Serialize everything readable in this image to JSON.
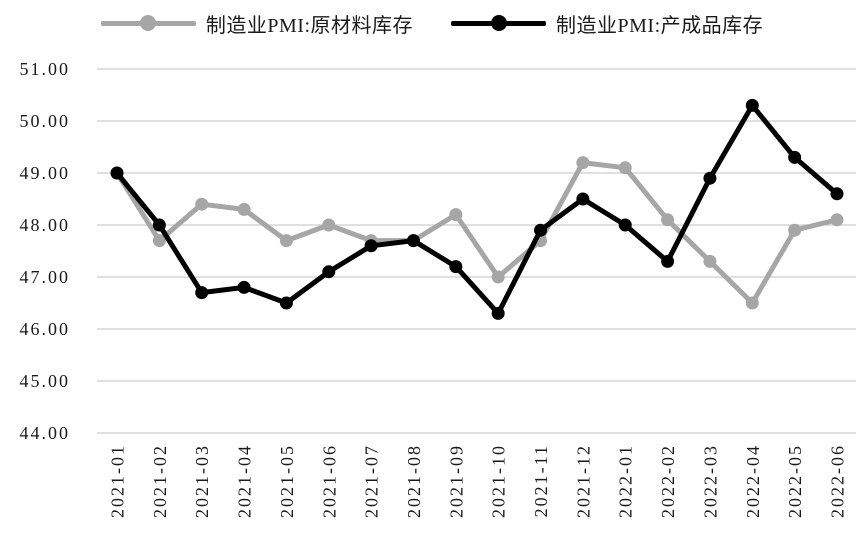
{
  "chart_data": {
    "type": "line",
    "title": "",
    "xlabel": "",
    "ylabel": "",
    "categories": [
      "2021-01",
      "2021-02",
      "2021-03",
      "2021-04",
      "2021-05",
      "2021-06",
      "2021-07",
      "2021-08",
      "2021-09",
      "2021-10",
      "2021-11",
      "2021-12",
      "2022-01",
      "2022-02",
      "2022-03",
      "2022-04",
      "2022-05",
      "2022-06"
    ],
    "series": [
      {
        "name": "制造业PMI:原材料库存",
        "color": "#a6a6a6",
        "marker": "circle",
        "values": [
          49.0,
          47.7,
          48.4,
          48.3,
          47.7,
          48.0,
          47.7,
          47.7,
          48.2,
          47.0,
          47.7,
          49.2,
          49.1,
          48.1,
          47.3,
          46.5,
          47.9,
          48.1
        ]
      },
      {
        "name": "制造业PMI:产成品库存",
        "color": "#000000",
        "marker": "circle",
        "values": [
          49.0,
          48.0,
          46.7,
          46.8,
          46.5,
          47.1,
          47.6,
          47.7,
          47.2,
          46.3,
          47.9,
          48.5,
          48.0,
          47.3,
          48.9,
          50.3,
          49.3,
          48.6
        ]
      }
    ],
    "ylim": [
      44.0,
      51.0
    ],
    "ytick_step": 1,
    "yticks": [
      "51.00",
      "50.00",
      "49.00",
      "48.00",
      "47.00",
      "46.00",
      "45.00",
      "44.00"
    ],
    "grid": "horizontal",
    "legend_position": "top",
    "x_label_rotation": -90
  },
  "colors": {
    "background": "#ffffff",
    "grid": "#cdcdcd",
    "text": "#1a1a1a"
  }
}
